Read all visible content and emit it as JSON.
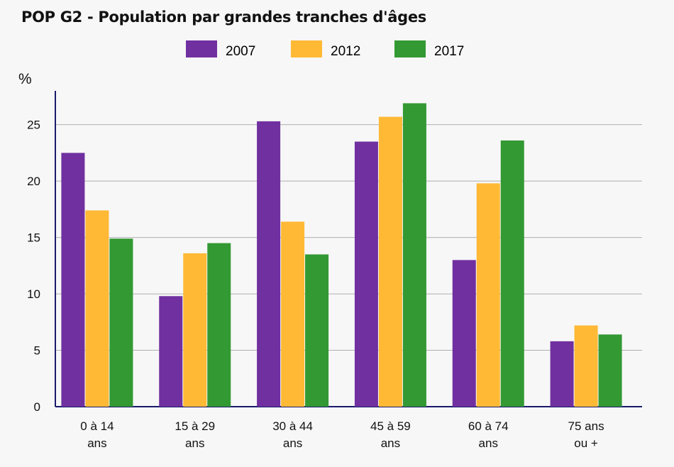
{
  "chart_data": {
    "type": "bar",
    "title": "POP G2 - Population par grandes tranches d'âges",
    "ylabel": "%",
    "xlabel": "",
    "ylim": [
      0,
      28
    ],
    "yticks": [
      0,
      5,
      10,
      15,
      20,
      25
    ],
    "grid": true,
    "legend_position": "top",
    "categories": [
      [
        "0 à 14",
        "ans"
      ],
      [
        "15 à 29",
        "ans"
      ],
      [
        "30 à 44",
        "ans"
      ],
      [
        "45 à 59",
        "ans"
      ],
      [
        "60 à 74",
        "ans"
      ],
      [
        "75 ans",
        "ou +"
      ]
    ],
    "series": [
      {
        "name": "2007",
        "color": "#7030a0",
        "values": [
          22.5,
          9.8,
          25.3,
          23.5,
          13.0,
          5.8
        ]
      },
      {
        "name": "2012",
        "color": "#ffb935",
        "values": [
          17.4,
          13.6,
          16.4,
          25.7,
          19.8,
          7.2
        ]
      },
      {
        "name": "2017",
        "color": "#339933",
        "values": [
          14.9,
          14.5,
          13.5,
          26.9,
          23.6,
          6.4
        ]
      }
    ]
  }
}
